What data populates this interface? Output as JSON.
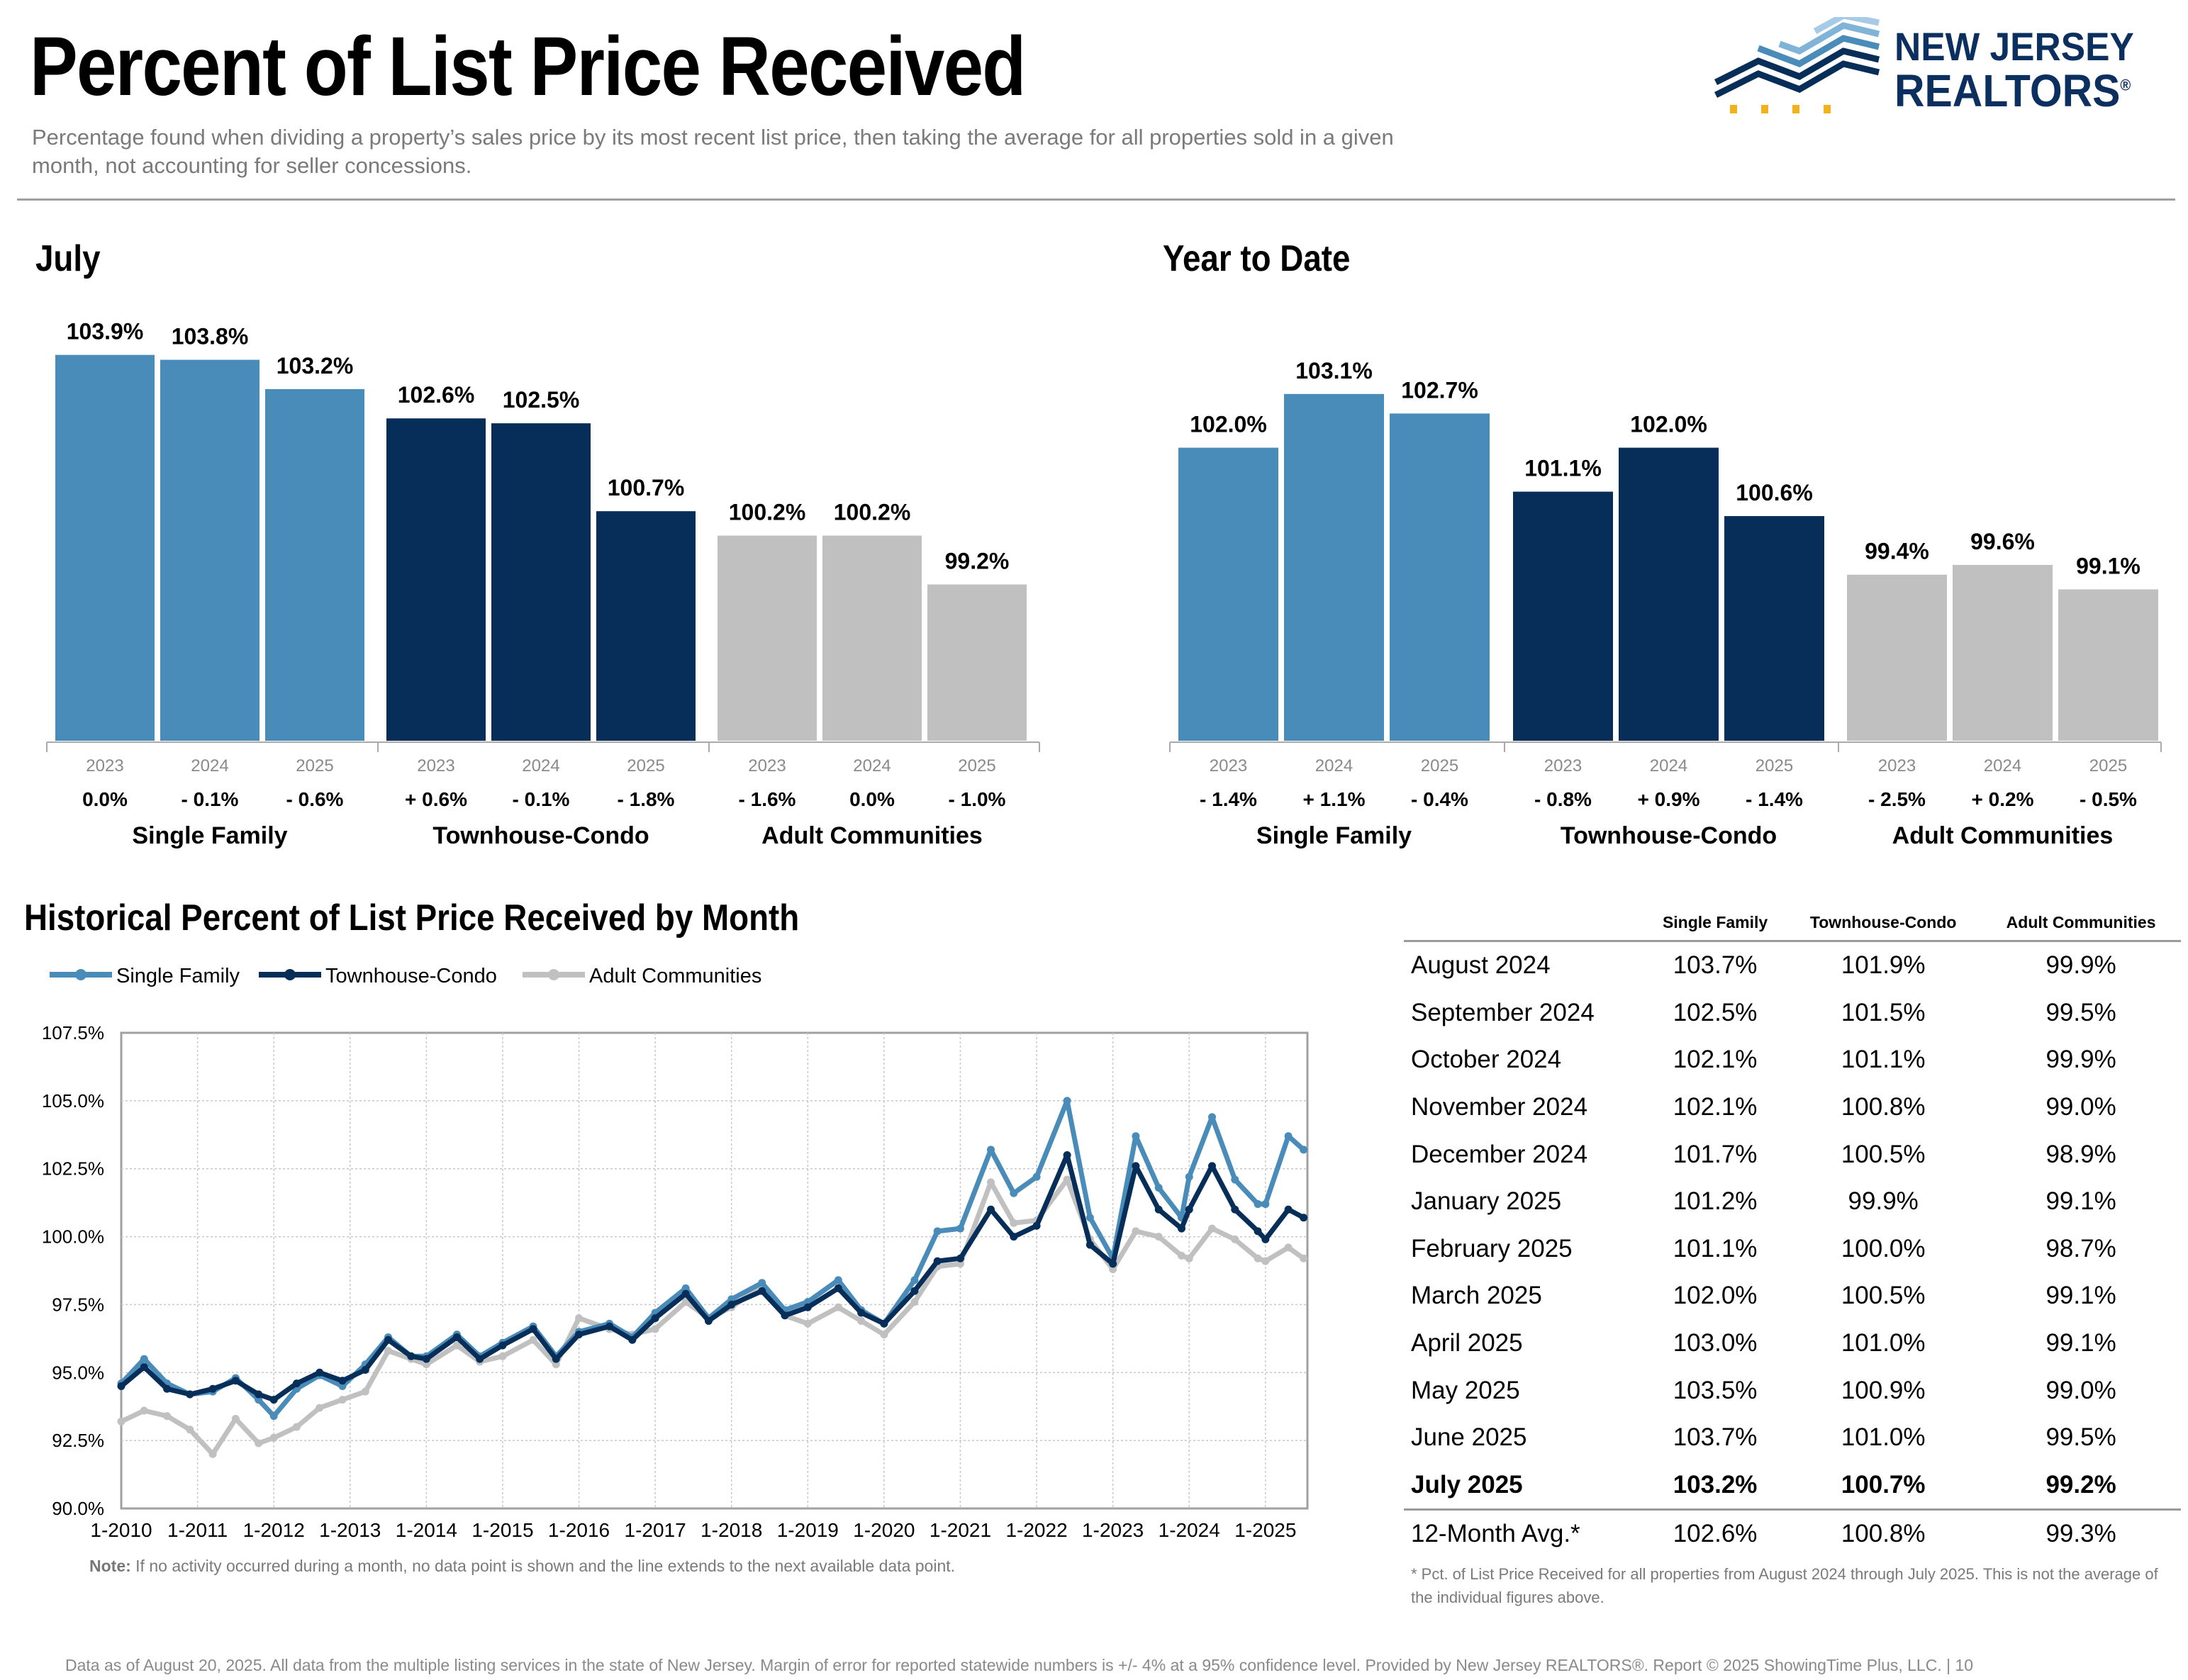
{
  "header": {
    "title": "Percent of List Price Received",
    "subtitle": "Percentage found when dividing a property’s sales price by its most recent list price, then taking the average for all properties sold in a given month, not accounting for seller concessions.",
    "logo_line1": "NEW JERSEY",
    "logo_line2": "REALTORS",
    "logo_mark": "®"
  },
  "colors": {
    "single_family": "#4a8cb9",
    "townhouse_condo": "#062e58",
    "adult_communities": "#c0c0c0",
    "axis": "#aaaaaa"
  },
  "chart_data": [
    {
      "type": "bar",
      "title": "July",
      "groups": [
        "Single Family",
        "Townhouse-Condo",
        "Adult Communities"
      ],
      "categories": [
        "2023",
        "2024",
        "2025"
      ],
      "series": [
        {
          "name": "Single Family",
          "values": [
            103.9,
            103.8,
            103.2
          ],
          "labels": [
            "103.9%",
            "103.8%",
            "103.2%"
          ],
          "changes": [
            "0.0%",
            "- 0.1%",
            "- 0.6%"
          ]
        },
        {
          "name": "Townhouse-Condo",
          "values": [
            102.6,
            102.5,
            100.7
          ],
          "labels": [
            "102.6%",
            "102.5%",
            "100.7%"
          ],
          "changes": [
            "+ 0.6%",
            "- 0.1%",
            "- 1.8%"
          ]
        },
        {
          "name": "Adult Communities",
          "values": [
            100.2,
            100.2,
            99.2
          ],
          "labels": [
            "100.2%",
            "100.2%",
            "99.2%"
          ],
          "changes": [
            "- 1.6%",
            "0.0%",
            "- 1.0%"
          ]
        }
      ]
    },
    {
      "type": "bar",
      "title": "Year to Date",
      "groups": [
        "Single Family",
        "Townhouse-Condo",
        "Adult Communities"
      ],
      "categories": [
        "2023",
        "2024",
        "2025"
      ],
      "series": [
        {
          "name": "Single Family",
          "values": [
            102.0,
            103.1,
            102.7
          ],
          "labels": [
            "102.0%",
            "103.1%",
            "102.7%"
          ],
          "changes": [
            "- 1.4%",
            "+ 1.1%",
            "- 0.4%"
          ]
        },
        {
          "name": "Townhouse-Condo",
          "values": [
            101.1,
            102.0,
            100.6
          ],
          "labels": [
            "101.1%",
            "102.0%",
            "100.6%"
          ],
          "changes": [
            "- 0.8%",
            "+ 0.9%",
            "- 1.4%"
          ]
        },
        {
          "name": "Adult Communities",
          "values": [
            99.4,
            99.6,
            99.1
          ],
          "labels": [
            "99.4%",
            "99.6%",
            "99.1%"
          ],
          "changes": [
            "- 2.5%",
            "+ 0.2%",
            "- 0.5%"
          ]
        }
      ]
    },
    {
      "type": "line",
      "title": "Historical Percent of List Price Received by Month",
      "legend": [
        "Single Family",
        "Townhouse-Condo",
        "Adult Communities"
      ],
      "ylim": [
        90.0,
        107.5
      ],
      "yticks": [
        "107.5%",
        "105.0%",
        "102.5%",
        "100.0%",
        "97.5%",
        "95.0%",
        "92.5%",
        "90.0%"
      ],
      "ytick_values": [
        107.5,
        105.0,
        102.5,
        100.0,
        97.5,
        95.0,
        92.5,
        90.0
      ],
      "xticks": [
        "1-2010",
        "1-2011",
        "1-2012",
        "1-2013",
        "1-2014",
        "1-2015",
        "1-2016",
        "1-2017",
        "1-2018",
        "1-2019",
        "1-2020",
        "1-2021",
        "1-2022",
        "1-2023",
        "1-2024",
        "1-2025"
      ],
      "x_start": "1-2010",
      "x_end": "7-2025",
      "series": [
        {
          "name": "Single Family",
          "x": [
            2010.0,
            2010.3,
            2010.6,
            2010.9,
            2011.2,
            2011.5,
            2011.8,
            2012.0,
            2012.3,
            2012.6,
            2012.9,
            2013.2,
            2013.5,
            2013.8,
            2014.0,
            2014.4,
            2014.7,
            2015.0,
            2015.4,
            2015.7,
            2016.0,
            2016.4,
            2016.7,
            2017.0,
            2017.4,
            2017.7,
            2018.0,
            2018.4,
            2018.7,
            2019.0,
            2019.4,
            2019.7,
            2020.0,
            2020.4,
            2020.7,
            2021.0,
            2021.4,
            2021.7,
            2022.0,
            2022.4,
            2022.7,
            2023.0,
            2023.3,
            2023.6,
            2023.9,
            2024.0,
            2024.3,
            2024.6,
            2024.9,
            2025.0,
            2025.3,
            2025.5
          ],
          "values": [
            94.6,
            95.5,
            94.6,
            94.2,
            94.3,
            94.8,
            94.0,
            93.4,
            94.4,
            94.9,
            94.5,
            95.3,
            96.3,
            95.6,
            95.6,
            96.4,
            95.6,
            96.1,
            96.7,
            95.6,
            96.5,
            96.8,
            96.3,
            97.2,
            98.1,
            97.0,
            97.7,
            98.3,
            97.3,
            97.6,
            98.4,
            97.3,
            96.8,
            98.4,
            100.2,
            100.3,
            103.2,
            101.6,
            102.2,
            105.0,
            100.7,
            99.2,
            103.7,
            101.8,
            100.7,
            102.2,
            104.4,
            102.1,
            101.2,
            101.2,
            103.7,
            103.2
          ]
        },
        {
          "name": "Townhouse-Condo",
          "x": [
            2010.0,
            2010.3,
            2010.6,
            2010.9,
            2011.2,
            2011.5,
            2011.8,
            2012.0,
            2012.3,
            2012.6,
            2012.9,
            2013.2,
            2013.5,
            2013.8,
            2014.0,
            2014.4,
            2014.7,
            2015.0,
            2015.4,
            2015.7,
            2016.0,
            2016.4,
            2016.7,
            2017.0,
            2017.4,
            2017.7,
            2018.0,
            2018.4,
            2018.7,
            2019.0,
            2019.4,
            2019.7,
            2020.0,
            2020.4,
            2020.7,
            2021.0,
            2021.4,
            2021.7,
            2022.0,
            2022.4,
            2022.7,
            2023.0,
            2023.3,
            2023.6,
            2023.9,
            2024.0,
            2024.3,
            2024.6,
            2024.9,
            2025.0,
            2025.3,
            2025.5
          ],
          "values": [
            94.5,
            95.2,
            94.4,
            94.2,
            94.4,
            94.7,
            94.2,
            94.0,
            94.6,
            95.0,
            94.7,
            95.1,
            96.2,
            95.6,
            95.5,
            96.3,
            95.5,
            96.0,
            96.6,
            95.5,
            96.4,
            96.7,
            96.2,
            97.0,
            97.9,
            96.9,
            97.5,
            98.0,
            97.1,
            97.4,
            98.1,
            97.2,
            96.8,
            98.0,
            99.1,
            99.2,
            101.0,
            100.0,
            100.4,
            103.0,
            99.7,
            99.0,
            102.6,
            101.0,
            100.3,
            101.0,
            102.6,
            101.0,
            100.2,
            99.9,
            101.0,
            100.7
          ]
        },
        {
          "name": "Adult Communities",
          "x": [
            2010.0,
            2010.3,
            2010.6,
            2010.9,
            2011.2,
            2011.5,
            2011.8,
            2012.0,
            2012.3,
            2012.6,
            2012.9,
            2013.2,
            2013.5,
            2013.8,
            2014.0,
            2014.4,
            2014.7,
            2015.0,
            2015.4,
            2015.7,
            2016.0,
            2016.4,
            2016.7,
            2017.0,
            2017.4,
            2017.7,
            2018.0,
            2018.4,
            2018.7,
            2019.0,
            2019.4,
            2019.7,
            2020.0,
            2020.4,
            2020.7,
            2021.0,
            2021.4,
            2021.7,
            2022.0,
            2022.4,
            2022.7,
            2023.0,
            2023.3,
            2023.6,
            2023.9,
            2024.0,
            2024.3,
            2024.6,
            2024.9,
            2025.0,
            2025.3,
            2025.5
          ],
          "values": [
            93.2,
            93.6,
            93.4,
            92.9,
            92.0,
            93.3,
            92.4,
            92.6,
            93.0,
            93.7,
            94.0,
            94.3,
            95.8,
            95.5,
            95.3,
            96.0,
            95.4,
            95.6,
            96.2,
            95.3,
            97.0,
            96.6,
            96.4,
            96.6,
            97.6,
            97.0,
            97.4,
            98.2,
            97.1,
            96.8,
            97.4,
            96.9,
            96.4,
            97.6,
            98.9,
            99.0,
            102.0,
            100.5,
            100.6,
            102.1,
            99.9,
            98.8,
            100.2,
            100.0,
            99.3,
            99.2,
            100.3,
            99.9,
            99.2,
            99.1,
            99.6,
            99.2
          ]
        }
      ]
    }
  ],
  "table": {
    "headers": [
      "Single Family",
      "Townhouse-Condo",
      "Adult Communities"
    ],
    "rows": [
      {
        "month": "August 2024",
        "sf": "103.7%",
        "tc": "101.9%",
        "ac": "99.9%"
      },
      {
        "month": "September 2024",
        "sf": "102.5%",
        "tc": "101.5%",
        "ac": "99.5%"
      },
      {
        "month": "October 2024",
        "sf": "102.1%",
        "tc": "101.1%",
        "ac": "99.9%"
      },
      {
        "month": "November 2024",
        "sf": "102.1%",
        "tc": "100.8%",
        "ac": "99.0%"
      },
      {
        "month": "December 2024",
        "sf": "101.7%",
        "tc": "100.5%",
        "ac": "98.9%"
      },
      {
        "month": "January 2025",
        "sf": "101.2%",
        "tc": "99.9%",
        "ac": "99.1%"
      },
      {
        "month": "February 2025",
        "sf": "101.1%",
        "tc": "100.0%",
        "ac": "98.7%"
      },
      {
        "month": "March 2025",
        "sf": "102.0%",
        "tc": "100.5%",
        "ac": "99.1%"
      },
      {
        "month": "April 2025",
        "sf": "103.0%",
        "tc": "101.0%",
        "ac": "99.1%"
      },
      {
        "month": "May 2025",
        "sf": "103.5%",
        "tc": "100.9%",
        "ac": "99.0%"
      },
      {
        "month": "June 2025",
        "sf": "103.7%",
        "tc": "101.0%",
        "ac": "99.5%"
      },
      {
        "month": "July 2025",
        "sf": "103.2%",
        "tc": "100.7%",
        "ac": "99.2%"
      }
    ],
    "avg": {
      "month": "12-Month Avg.*",
      "sf": "102.6%",
      "tc": "100.8%",
      "ac": "99.3%"
    },
    "footnote": "* Pct. of List Price Received for all properties from August 2024 through July 2025. This is not the average of the individual figures above."
  },
  "note_label": "Note:",
  "note": "If no activity occurred during a month, no data point is shown and the line extends to the next available data point.",
  "footer": "Data as of August 20, 2025. All data from the multiple listing services in the state of New Jersey. Margin of error for reported statewide numbers is +/- 4% at a 95% confidence level. Provided by New Jersey REALTORS®. Report © 2025 ShowingTime Plus, LLC. |  10"
}
